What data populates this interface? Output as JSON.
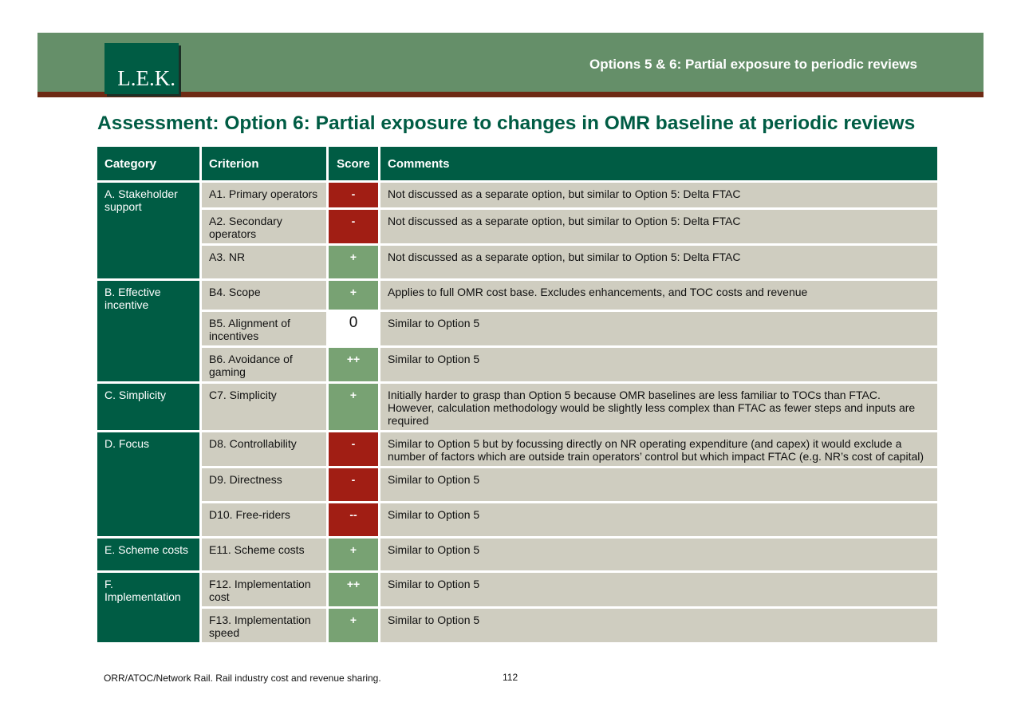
{
  "header": {
    "logo_text": "L.E.K.",
    "title": "Options 5 & 6: Partial exposure to periodic reviews",
    "band_color": "#658f69",
    "stripe_color": "#6e2a14"
  },
  "page_title": "Assessment: Option 6: Partial exposure to changes in OMR baseline at periodic reviews",
  "table": {
    "headers": {
      "category": "Category",
      "criterion": "Criterion",
      "score": "Score",
      "comments": "Comments"
    },
    "groups": [
      {
        "category": "A. Stakeholder support",
        "rows": [
          {
            "criterion": "A1. Primary operators",
            "score": "-",
            "comment": "Not discussed as a separate option, but similar to Option 5: Delta FTAC"
          },
          {
            "criterion": "A2. Secondary operators",
            "score": "-",
            "comment": "Not discussed as a separate option, but similar to Option 5: Delta FTAC"
          },
          {
            "criterion": "A3. NR",
            "score": "+",
            "comment": "Not discussed as a separate option, but similar to Option 5: Delta FTAC"
          }
        ]
      },
      {
        "category": "B. Effective incentive",
        "rows": [
          {
            "criterion": "B4. Scope",
            "score": "+",
            "comment": "Applies to full OMR cost base. Excludes enhancements, and TOC costs and revenue"
          },
          {
            "criterion": "B5. Alignment of incentives",
            "score": "0",
            "comment": "Similar to Option 5"
          },
          {
            "criterion": "B6. Avoidance of gaming",
            "score": "++",
            "comment": "Similar to Option 5"
          }
        ]
      },
      {
        "category": "C. Simplicity",
        "rows": [
          {
            "criterion": "C7. Simplicity",
            "score": "+",
            "comment": "Initially harder to grasp than Option 5 because OMR baselines are less familiar to TOCs than FTAC. However, calculation methodology would be slightly less complex than FTAC as fewer steps and inputs are required"
          }
        ]
      },
      {
        "category": "D. Focus",
        "rows": [
          {
            "criterion": "D8. Controllability",
            "score": "-",
            "comment": "Similar to Option 5 but by focussing directly on NR operating expenditure (and capex) it would exclude a number of factors which are outside train operators’ control but which impact FTAC (e.g. NR’s cost of capital)"
          },
          {
            "criterion": "D9. Directness",
            "score": "-",
            "comment": "Similar to Option 5"
          },
          {
            "criterion": "D10. Free-riders",
            "score": "--",
            "comment": "Similar to Option 5"
          }
        ]
      },
      {
        "category": "E. Scheme costs",
        "rows": [
          {
            "criterion": "E11. Scheme costs",
            "score": "+",
            "comment": "Similar to Option 5"
          }
        ]
      },
      {
        "category": "F. Implementation",
        "rows": [
          {
            "criterion": "F12. Implementation cost",
            "score": "++",
            "comment": "Similar to Option 5"
          },
          {
            "criterion": "F13. Implementation speed",
            "score": "+",
            "comment": "Similar to Option 5"
          }
        ]
      }
    ],
    "colors": {
      "dark_green": "#005c44",
      "positive": "#78a273",
      "negative": "#a11e14",
      "neutral": "#ffffff",
      "row_bg": "#cfcdc0"
    }
  },
  "footer": {
    "source": "ORR/ATOC/Network Rail.  Rail industry cost and revenue sharing.",
    "page_number": "112"
  }
}
